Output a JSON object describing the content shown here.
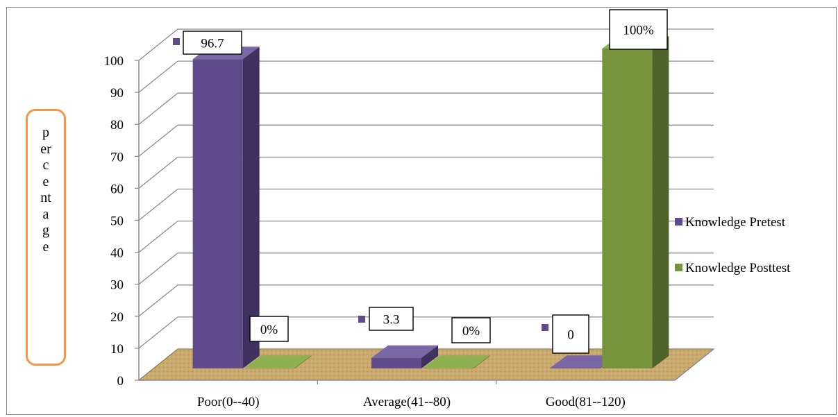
{
  "chart_data": {
    "type": "bar",
    "title": "",
    "xlabel": "",
    "ylabel": "percentage",
    "ylim": [
      0,
      100
    ],
    "yticks": [
      0,
      10,
      20,
      30,
      40,
      50,
      60,
      70,
      80,
      90,
      100
    ],
    "categories": [
      "Poor(0--40)",
      "Average(41--80)",
      "Good(81--120)"
    ],
    "series": [
      {
        "name": "Knowledge Pretest",
        "values": [
          96.7,
          3.3,
          0
        ],
        "labels": [
          "96.7",
          "3.3",
          "0"
        ],
        "color": "#5f4b8b",
        "side_color": "#3f3160",
        "top_color": "#7a68a6"
      },
      {
        "name": "Knowledge Posttest",
        "values": [
          0,
          0,
          100
        ],
        "labels": [
          "0%",
          "0%",
          "100%"
        ],
        "color": "#77933c",
        "side_color": "#4f6228",
        "top_color": "#8db050"
      }
    ],
    "grid": true,
    "legend_position": "right",
    "floor_color": "#c9a96e",
    "style": "3d-clustered-column"
  }
}
